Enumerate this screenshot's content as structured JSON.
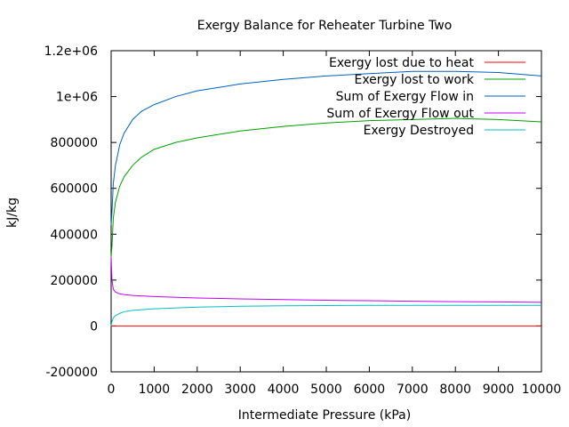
{
  "chart_data": {
    "type": "line",
    "title": "Exergy Balance for Reheater Turbine Two",
    "xlabel": "Intermediate Pressure (kPa)",
    "ylabel": "kJ/kg",
    "xlim": [
      0,
      10000
    ],
    "ylim": [
      -200000,
      1200000
    ],
    "xticks": [
      0,
      1000,
      2000,
      3000,
      4000,
      5000,
      6000,
      7000,
      8000,
      9000,
      10000
    ],
    "xtick_labels": [
      "0",
      "1000",
      "2000",
      "3000",
      "4000",
      "5000",
      "6000",
      "7000",
      "8000",
      "9000",
      "10000"
    ],
    "yticks": [
      -200000,
      0,
      200000,
      400000,
      600000,
      800000,
      1000000,
      1200000
    ],
    "ytick_labels": [
      "-200000",
      "0",
      "200000",
      "400000",
      "600000",
      "800000",
      "1e+06",
      "1.2e+06"
    ],
    "grid": false,
    "legend_position": "top-right",
    "series": [
      {
        "name": "Exergy lost due to heat",
        "color": "#ff0000",
        "x": [
          0,
          1000,
          2000,
          4000,
          6000,
          8000,
          10000
        ],
        "y": [
          0,
          0,
          0,
          0,
          0,
          0,
          0
        ]
      },
      {
        "name": "Exergy lost to work",
        "color": "#00a000",
        "x": [
          0,
          20,
          50,
          100,
          200,
          300,
          500,
          700,
          1000,
          1500,
          2000,
          3000,
          4000,
          5000,
          6000,
          7000,
          8000,
          9000,
          10000
        ],
        "y": [
          300000,
          350000,
          470000,
          540000,
          610000,
          650000,
          700000,
          735000,
          770000,
          800000,
          820000,
          850000,
          870000,
          885000,
          895000,
          900000,
          905000,
          900000,
          890000
        ]
      },
      {
        "name": "Sum of Exergy Flow in",
        "color": "#0060c0",
        "x": [
          0,
          20,
          50,
          100,
          200,
          300,
          500,
          700,
          1000,
          1500,
          2000,
          3000,
          4000,
          5000,
          6000,
          7000,
          8000,
          9000,
          10000
        ],
        "y": [
          440000,
          500000,
          620000,
          700000,
          790000,
          840000,
          900000,
          935000,
          965000,
          1000000,
          1025000,
          1055000,
          1075000,
          1090000,
          1100000,
          1110000,
          1110000,
          1105000,
          1090000
        ]
      },
      {
        "name": "Sum of Exergy Flow out",
        "color": "#c000ff",
        "x": [
          0,
          20,
          50,
          100,
          200,
          300,
          500,
          1000,
          2000,
          3000,
          4000,
          5000,
          6000,
          7000,
          8000,
          9000,
          10000
        ],
        "y": [
          300000,
          200000,
          160000,
          148000,
          140000,
          137000,
          133000,
          128000,
          122000,
          118000,
          115000,
          112000,
          110000,
          108000,
          106000,
          105000,
          103000
        ]
      },
      {
        "name": "Exergy Destroyed",
        "color": "#00c0c0",
        "x": [
          0,
          20,
          50,
          100,
          200,
          300,
          500,
          1000,
          2000,
          3000,
          4000,
          5000,
          6000,
          7000,
          8000,
          9000,
          10000
        ],
        "y": [
          0,
          20000,
          35000,
          45000,
          55000,
          62000,
          68000,
          75000,
          82000,
          86000,
          88000,
          89000,
          90000,
          90000,
          90000,
          90000,
          90000
        ]
      }
    ]
  }
}
